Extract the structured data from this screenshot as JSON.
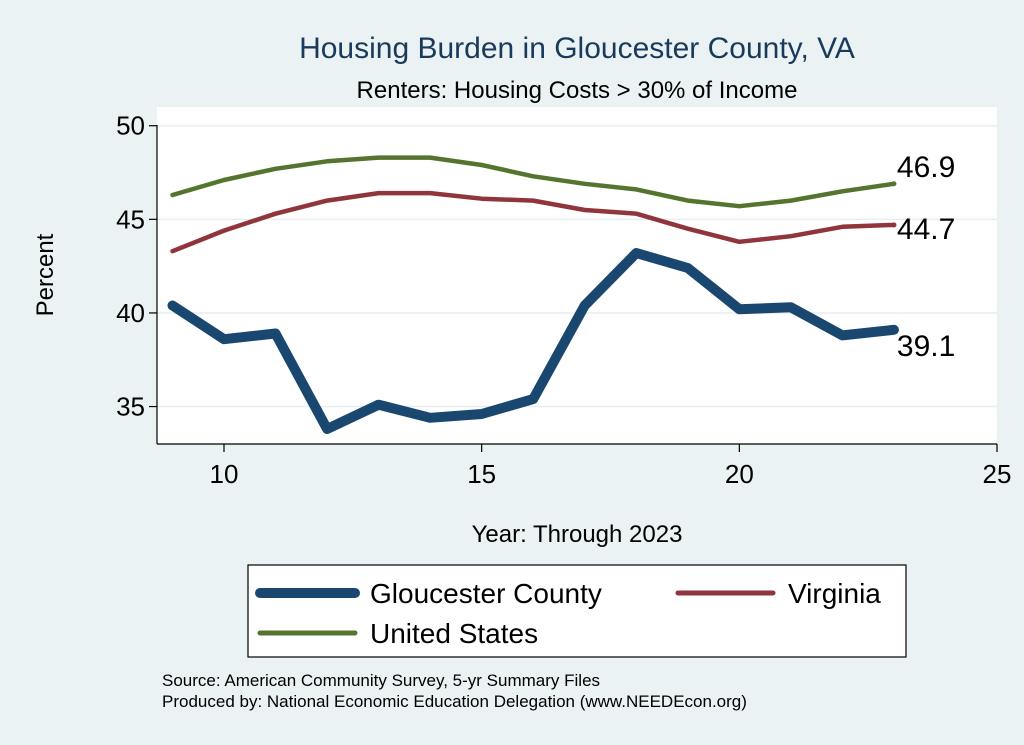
{
  "chart_data": {
    "type": "line",
    "title": "Housing Burden in Gloucester County, VA",
    "subtitle": "Renters: Housing Costs > 30% of Income",
    "xlabel": "Year: Through 2023",
    "ylabel": "Percent",
    "xlim": [
      8.7,
      25
    ],
    "ylim": [
      33,
      51
    ],
    "xticks": [
      "10",
      "15",
      "20",
      "25"
    ],
    "yticks": [
      "35",
      "40",
      "45",
      "50"
    ],
    "x": [
      9,
      10,
      11,
      12,
      13,
      14,
      15,
      16,
      17,
      18,
      19,
      20,
      21,
      22,
      23
    ],
    "series": [
      {
        "name": "Gloucester County",
        "color": "#1a476f",
        "values": [
          40.4,
          38.6,
          38.9,
          33.8,
          35.1,
          34.4,
          34.6,
          35.4,
          40.4,
          43.2,
          42.4,
          40.2,
          40.3,
          38.8,
          39.1
        ],
        "end_label": "39.1"
      },
      {
        "name": "Virginia",
        "color": "#90353b",
        "values": [
          43.3,
          44.4,
          45.3,
          46.0,
          46.4,
          46.4,
          46.1,
          46.0,
          45.5,
          45.3,
          44.5,
          43.8,
          44.1,
          44.6,
          44.7
        ],
        "end_label": "44.7"
      },
      {
        "name": "United States",
        "color": "#55752f",
        "values": [
          46.3,
          47.1,
          47.7,
          48.1,
          48.3,
          48.3,
          47.9,
          47.3,
          46.9,
          46.6,
          46.0,
          45.7,
          46.0,
          46.5,
          46.9
        ],
        "end_label": "46.9"
      }
    ],
    "grid": true,
    "legend": "bottom"
  },
  "notes": {
    "source": "Source: American Community Survey, 5-yr Summary Files",
    "produced": "Produced by: National Economic Education Delegation (www.NEEDEcon.org)"
  }
}
